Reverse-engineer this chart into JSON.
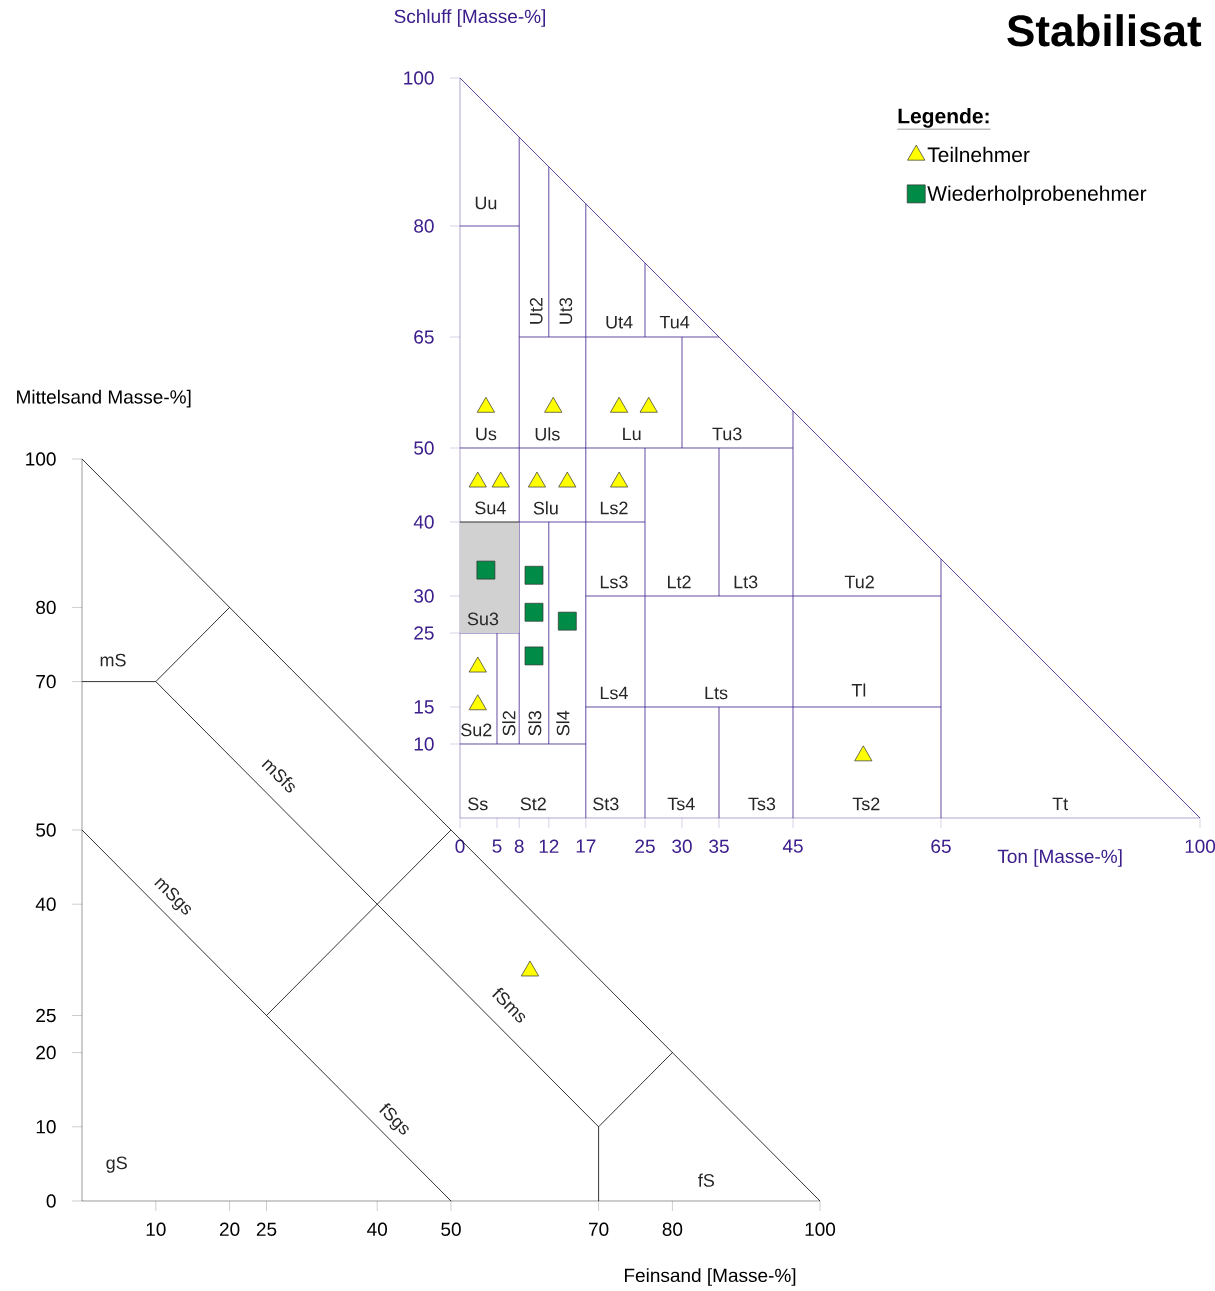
{
  "chart_data": [
    {
      "type": "scatter",
      "title": "Stabilisat",
      "xlabel": "Ton [Masse-%]",
      "ylabel": "Schluff [Masse-%]",
      "legend_title": "Legende:",
      "legend": "top right",
      "xlim": [
        0,
        100
      ],
      "ylim": [
        0,
        100
      ],
      "xticks": [
        0,
        5,
        8,
        12,
        17,
        25,
        30,
        35,
        45,
        65,
        100
      ],
      "yticks": [
        10,
        15,
        25,
        30,
        40,
        50,
        65,
        80,
        100
      ],
      "series": [
        {
          "type": "line",
          "color": "#3c1e8c",
          "x": [
            0,
            100
          ],
          "values": [
            100,
            0
          ]
        },
        {
          "type": "line",
          "color": "#3c1e8c",
          "x": [
            0,
            8
          ],
          "values": [
            80,
            80
          ]
        },
        {
          "type": "line",
          "color": "#3c1e8c",
          "x": [
            8,
            8
          ],
          "values": [
            92,
            10
          ]
        },
        {
          "type": "line",
          "color": "#3c1e8c",
          "x": [
            12,
            12
          ],
          "values": [
            88,
            65
          ]
        },
        {
          "type": "line",
          "color": "#3c1e8c",
          "x": [
            12,
            12
          ],
          "values": [
            40,
            10
          ]
        },
        {
          "type": "line",
          "color": "#3c1e8c",
          "x": [
            17,
            17
          ],
          "values": [
            83,
            0
          ]
        },
        {
          "type": "line",
          "color": "#3c1e8c",
          "x": [
            25,
            25
          ],
          "values": [
            75,
            65
          ]
        },
        {
          "type": "line",
          "color": "#3c1e8c",
          "x": [
            25,
            25
          ],
          "values": [
            50,
            0
          ]
        },
        {
          "type": "line",
          "color": "#3c1e8c",
          "x": [
            30,
            30
          ],
          "values": [
            65,
            50
          ]
        },
        {
          "type": "line",
          "color": "#3c1e8c",
          "x": [
            35,
            35
          ],
          "values": [
            50,
            30
          ]
        },
        {
          "type": "line",
          "color": "#3c1e8c",
          "x": [
            35,
            35
          ],
          "values": [
            15,
            0
          ]
        },
        {
          "type": "line",
          "color": "#3c1e8c",
          "x": [
            45,
            45
          ],
          "values": [
            55,
            0
          ]
        },
        {
          "type": "line",
          "color": "#3c1e8c",
          "x": [
            65,
            65
          ],
          "values": [
            35,
            0
          ]
        },
        {
          "type": "line",
          "color": "#3c1e8c",
          "x": [
            8,
            35
          ],
          "values": [
            65,
            65
          ]
        },
        {
          "type": "line",
          "color": "#3c1e8c",
          "x": [
            0,
            45
          ],
          "values": [
            50,
            50
          ]
        },
        {
          "type": "line",
          "color": "#3c1e8c",
          "x": [
            8,
            25
          ],
          "values": [
            40,
            40
          ]
        },
        {
          "type": "line",
          "color": "#3c1e8c",
          "x": [
            17,
            65
          ],
          "values": [
            30,
            30
          ]
        },
        {
          "type": "line",
          "color": "#3c1e8c",
          "x": [
            0,
            8
          ],
          "values": [
            25,
            25
          ]
        },
        {
          "type": "line",
          "color": "#3c1e8c",
          "x": [
            17,
            65
          ],
          "values": [
            15,
            15
          ]
        },
        {
          "type": "line",
          "color": "#3c1e8c",
          "x": [
            0,
            17
          ],
          "values": [
            10,
            10
          ]
        },
        {
          "type": "line",
          "color": "#3c1e8c",
          "x": [
            5,
            5
          ],
          "values": [
            25,
            10
          ]
        },
        {
          "type": "line",
          "color": "#000000",
          "x": [
            0,
            8
          ],
          "values": [
            40,
            40
          ],
          "lower": [
            25,
            25
          ],
          "upper": [
            40,
            40
          ]
        },
        {
          "name": "Teilnehmer",
          "marker": "triangle",
          "color": "#ffff00",
          "x": [
            3.5,
            12.6,
            21.5,
            25.5,
            2.4,
            5.5,
            10.4,
            14.5,
            21.5,
            2.4,
            2.4,
            54.5
          ],
          "values": [
            55.5,
            55.5,
            55.5,
            55.5,
            45.4,
            45.4,
            45.4,
            45.4,
            45.4,
            20.4,
            15.3,
            8.4
          ]
        },
        {
          "name": "Wiederholprobenehmer",
          "marker": "square",
          "color": "#008c46",
          "x": [
            3.5,
            10,
            10,
            14.5,
            10
          ],
          "values": [
            33.5,
            32.8,
            27.8,
            26.6,
            21.9
          ]
        }
      ],
      "annotations": [
        "Uu",
        "Ut2",
        "Ut3",
        "Ut4",
        "Tu4",
        "Us",
        "Uls",
        "Lu",
        "Tu3",
        "Su4",
        "Slu",
        "Ls2",
        "Su3",
        "Ls3",
        "Lt2",
        "Lt3",
        "Tu2",
        "Ls4",
        "Lts",
        "Tl",
        "Su2",
        "Sl2",
        "Sl3",
        "Sl4",
        "Ss",
        "St2",
        "St3",
        "Ts4",
        "Ts3",
        "Ts2",
        "Tt"
      ]
    },
    {
      "type": "scatter",
      "xlabel": "Feinsand [Masse-%]",
      "ylabel": "Mittelsand Masse-%]",
      "xlim": [
        0,
        100
      ],
      "ylim": [
        0,
        100
      ],
      "xticks": [
        10,
        20,
        25,
        40,
        50,
        70,
        80,
        100
      ],
      "yticks": [
        0,
        10,
        20,
        25,
        40,
        50,
        70,
        80,
        100
      ],
      "series": [
        {
          "type": "line",
          "color": "#000000",
          "x": [
            0,
            100
          ],
          "values": [
            100,
            0
          ]
        },
        {
          "type": "line",
          "color": "#000000",
          "x": [
            0,
            50
          ],
          "values": [
            50,
            0
          ]
        },
        {
          "type": "line",
          "color": "#000000",
          "x": [
            0,
            10
          ],
          "values": [
            70,
            70
          ]
        },
        {
          "type": "line",
          "color": "#000000",
          "x": [
            10,
            70
          ],
          "values": [
            70,
            10
          ]
        },
        {
          "type": "line",
          "color": "#000000",
          "x": [
            70,
            70
          ],
          "values": [
            10,
            0
          ]
        },
        {
          "type": "line",
          "color": "#000000",
          "x": [
            10,
            20
          ],
          "values": [
            70,
            80
          ]
        },
        {
          "type": "line",
          "color": "#000000",
          "x": [
            25,
            50
          ],
          "values": [
            25,
            50
          ]
        },
        {
          "type": "line",
          "color": "#000000",
          "x": [
            70,
            80
          ],
          "values": [
            10,
            20
          ]
        },
        {
          "marker": "triangle",
          "color": "#ffff00",
          "x": [
            60.7
          ],
          "values": [
            31
          ]
        }
      ],
      "annotations": [
        "mS",
        "mSfs",
        "mSgs",
        "fSms",
        "fSgs",
        "gS",
        "fS"
      ]
    }
  ]
}
